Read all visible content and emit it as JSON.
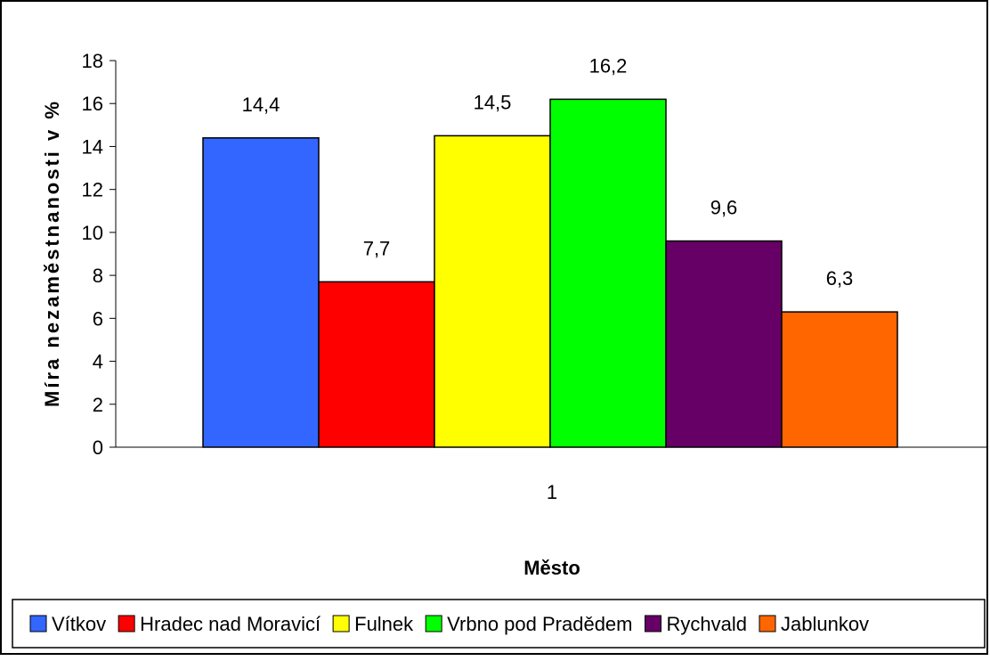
{
  "chart_data": {
    "type": "bar",
    "categories": [
      "1"
    ],
    "xlabel": "Město",
    "ylabel": "Míra nezaměstnanosti v %",
    "ylim": [
      0,
      18
    ],
    "yticks": [
      0,
      2,
      4,
      6,
      8,
      10,
      12,
      14,
      16,
      18
    ],
    "grid": false,
    "legend_position": "bottom",
    "series": [
      {
        "name": "Vítkov",
        "values": [
          14.4
        ],
        "label": "14,4",
        "color": "#3366FF"
      },
      {
        "name": "Hradec nad Moravicí",
        "values": [
          7.7
        ],
        "label": "7,7",
        "color": "#FF0000"
      },
      {
        "name": "Fulnek",
        "values": [
          14.5
        ],
        "label": "14,5",
        "color": "#FFFF00"
      },
      {
        "name": "Vrbno pod Pradědem",
        "values": [
          16.2
        ],
        "label": "16,2",
        "color": "#00FF00"
      },
      {
        "name": "Rychvald",
        "values": [
          9.6
        ],
        "label": "9,6",
        "color": "#660066"
      },
      {
        "name": "Jablunkov",
        "values": [
          6.3
        ],
        "label": "6,3",
        "color": "#FF6600"
      }
    ]
  }
}
